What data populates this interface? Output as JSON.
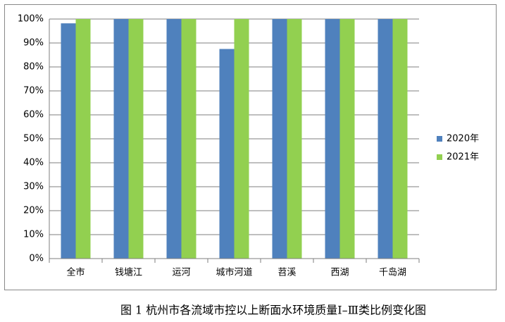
{
  "chart_data": {
    "type": "bar",
    "caption": "图 1 杭州市各流域市控以上断面水环境质量Ⅰ–Ⅲ类比例变化图",
    "categories": [
      "全市",
      "钱塘江",
      "运河",
      "城市河道",
      "苕溪",
      "西湖",
      "千岛湖"
    ],
    "series": [
      {
        "name": "2020年",
        "color": "#4f81bd",
        "values": [
          98.2,
          100,
          100,
          87.5,
          100,
          100,
          100
        ]
      },
      {
        "name": "2021年",
        "color": "#92d050",
        "values": [
          100,
          100,
          100,
          100,
          100,
          100,
          100
        ]
      }
    ],
    "ylim": [
      0,
      100
    ],
    "yticks": [
      {
        "value": 0,
        "label": "0%"
      },
      {
        "value": 10,
        "label": "10%"
      },
      {
        "value": 20,
        "label": "20%"
      },
      {
        "value": 30,
        "label": "30%"
      },
      {
        "value": 40,
        "label": "40%"
      },
      {
        "value": 50,
        "label": "50%"
      },
      {
        "value": 60,
        "label": "60%"
      },
      {
        "value": 70,
        "label": "70%"
      },
      {
        "value": 80,
        "label": "80%"
      },
      {
        "value": 90,
        "label": "90%"
      },
      {
        "value": 100,
        "label": "100%"
      }
    ],
    "grid": true,
    "legend": "right"
  }
}
